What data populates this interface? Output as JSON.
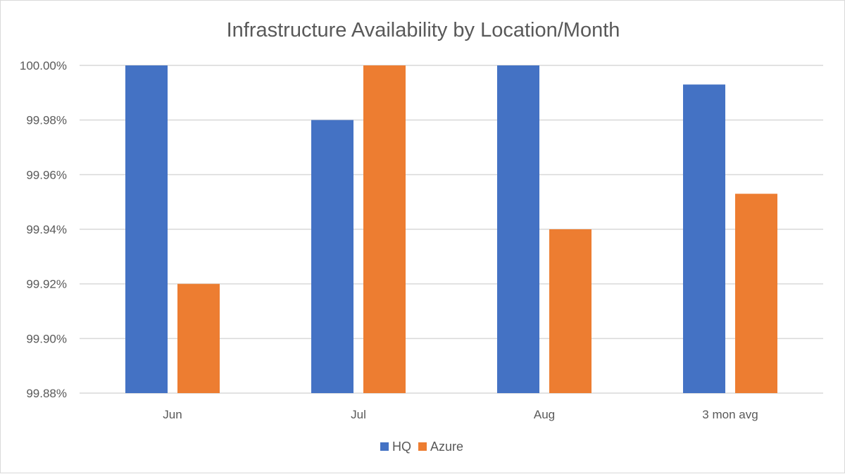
{
  "chart_data": {
    "type": "bar",
    "title": "Infrastructure Availability by Location/Month",
    "xlabel": "",
    "ylabel": "",
    "categories": [
      "Jun",
      "Jul",
      "Aug",
      "3 mon avg"
    ],
    "series": [
      {
        "name": "HQ",
        "color": "#4472c4",
        "values": [
          100.0,
          99.98,
          100.0,
          99.993
        ]
      },
      {
        "name": "Azure",
        "color": "#ed7d31",
        "values": [
          99.92,
          100.0,
          99.94,
          99.953
        ]
      }
    ],
    "ylim": [
      99.88,
      100.0
    ],
    "yticks": [
      99.88,
      99.9,
      99.92,
      99.94,
      99.96,
      99.98,
      100.0
    ],
    "ytick_labels": [
      "99.88%",
      "99.90%",
      "99.92%",
      "99.94%",
      "99.96%",
      "99.98%",
      "100.00%"
    ],
    "grid": true,
    "legend_position": "bottom"
  }
}
